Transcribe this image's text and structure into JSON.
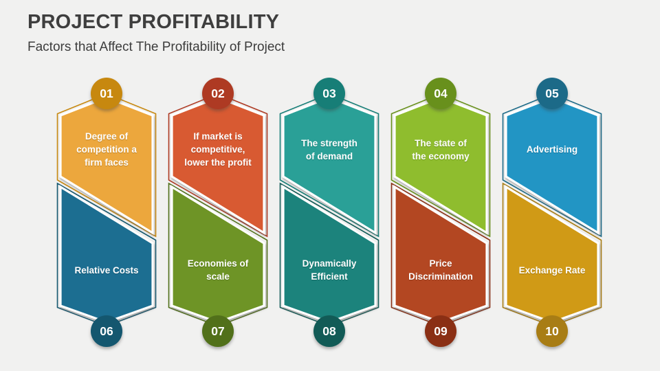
{
  "header": {
    "title": "PROJECT PROFITABILITY",
    "subtitle": "Factors that Affect The Profitability of Project"
  },
  "theme": {
    "background": "#f1f1f0",
    "title_color": "#3e3e3e",
    "subtitle_color": "#3c3c3c",
    "label_text_color": "#ffffff",
    "shape_rim_color": "#ffffff"
  },
  "columns": [
    {
      "top": {
        "number": "01",
        "label": "Degree of\ncompetition a\nfirm faces",
        "fill": "#ECA73C",
        "accent": "#C7880F"
      },
      "bottom": {
        "number": "06",
        "label": "Relative Costs",
        "fill": "#1D6E91",
        "accent": "#14576F"
      }
    },
    {
      "top": {
        "number": "02",
        "label": "If market is\ncompetitive,\nlower the profit",
        "fill": "#D85A31",
        "accent": "#AE3A23"
      },
      "bottom": {
        "number": "07",
        "label": "Economies of\nscale",
        "fill": "#6E9425",
        "accent": "#51701A"
      }
    },
    {
      "top": {
        "number": "03",
        "label": "The strength\nof demand",
        "fill": "#2BA097",
        "accent": "#177E77"
      },
      "bottom": {
        "number": "08",
        "label": "Dynamically\nEfficient",
        "fill": "#1F837C",
        "accent": "#125B56"
      }
    },
    {
      "top": {
        "number": "04",
        "label": "The state of\nthe economy",
        "fill": "#8FBD2E",
        "accent": "#68901C"
      },
      "bottom": {
        "number": "09",
        "label": "Price\nDiscrimination",
        "fill": "#B34724",
        "accent": "#8A2F14"
      }
    },
    {
      "top": {
        "number": "05",
        "label": "Advertising",
        "fill": "#2095C4",
        "accent": "#1C6A88"
      },
      "bottom": {
        "number": "10",
        "label": "Exchange Rate",
        "fill": "#D09A18",
        "accent": "#A87D15"
      }
    }
  ]
}
